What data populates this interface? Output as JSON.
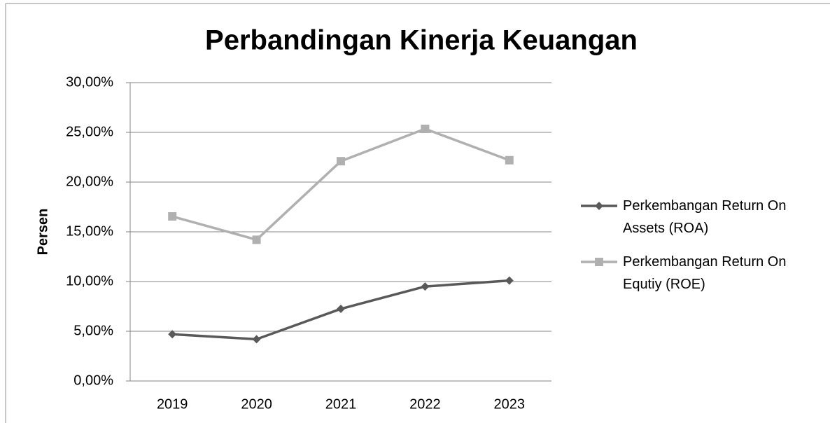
{
  "chart_data": {
    "type": "line",
    "title": "Perbandingan Kinerja Keuangan",
    "y_label": "Persen",
    "categories": [
      "2019",
      "2020",
      "2021",
      "2022",
      "2023"
    ],
    "series": [
      {
        "name": "Perkembangan Return On Assets (ROA)",
        "color": "#595959",
        "marker": "diamond",
        "values": [
          4.7,
          4.2,
          7.25,
          9.5,
          10.1
        ]
      },
      {
        "name": "Perkembangan Return On Equtiy (ROE)",
        "color": "#b0b0b0",
        "marker": "square",
        "values": [
          16.55,
          14.2,
          22.1,
          25.35,
          22.2
        ]
      }
    ],
    "ylim": [
      0,
      30
    ],
    "yticks": [
      {
        "value": 0,
        "label": "0,00%"
      },
      {
        "value": 5,
        "label": "5,00%"
      },
      {
        "value": 10,
        "label": "10,00%"
      },
      {
        "value": 15,
        "label": "15,00%"
      },
      {
        "value": 20,
        "label": "20,00%"
      },
      {
        "value": 25,
        "label": "25,00%"
      },
      {
        "value": 30,
        "label": "30,00%"
      }
    ],
    "grid": true,
    "legend": "right"
  }
}
